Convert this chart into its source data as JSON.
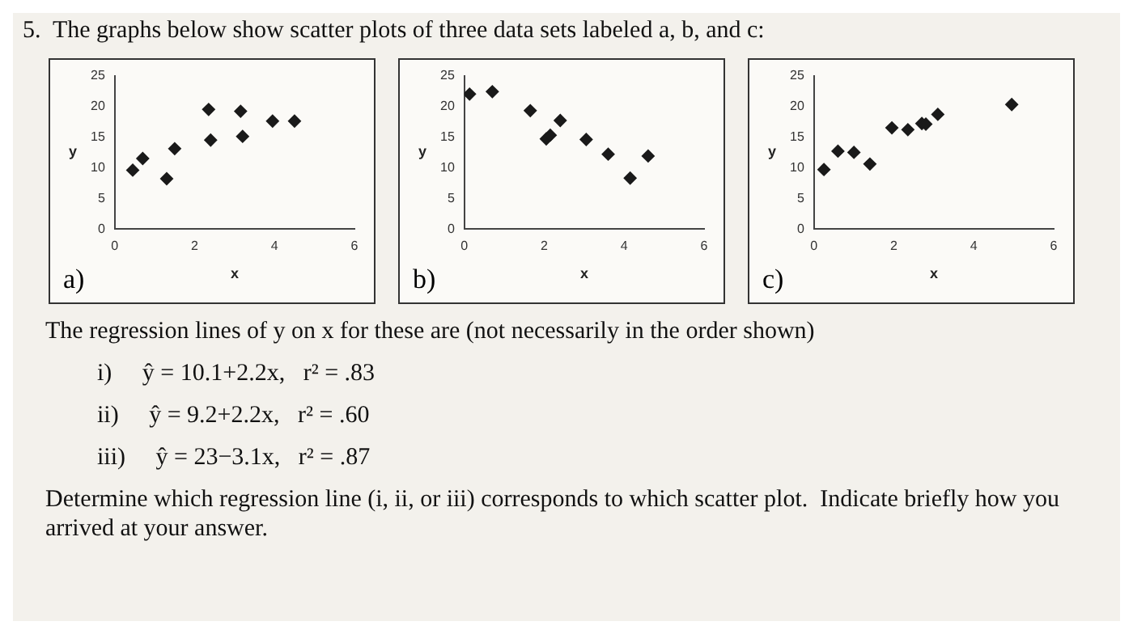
{
  "chart_data": [
    {
      "type": "other",
      "annotations": [
        "5.  The graphs below show scatter plots of three data sets labeled a, b, and c:"
      ]
    },
    {
      "type": "scatter",
      "xlabel": "x",
      "ylabel": "y",
      "annotations": [
        "a)"
      ],
      "marker": "diamond",
      "color": "#1a1a1a",
      "xlim": [
        0,
        6
      ],
      "xticks": [
        0,
        2,
        4,
        6
      ],
      "ylim": [
        0,
        25
      ],
      "yticks": [
        0,
        5,
        10,
        15,
        20,
        25
      ],
      "x": [
        0.45,
        0.7,
        1.3,
        1.5,
        2.35,
        2.4,
        3.15,
        3.2,
        3.95,
        4.5
      ],
      "values": [
        9.6,
        11.5,
        8.2,
        13.1,
        19.5,
        14.5,
        19.2,
        15.1,
        17.6,
        17.6
      ]
    },
    {
      "type": "scatter",
      "xlabel": "x",
      "ylabel": "y",
      "annotations": [
        "b)"
      ],
      "marker": "diamond",
      "color": "#1a1a1a",
      "xlim": [
        0,
        6
      ],
      "xticks": [
        0,
        2,
        4,
        6
      ],
      "ylim": [
        0,
        25
      ],
      "yticks": [
        0,
        5,
        10,
        15,
        20,
        25
      ],
      "x": [
        0.13,
        0.7,
        1.65,
        2.05,
        2.15,
        2.4,
        3.05,
        3.6,
        4.15,
        4.6
      ],
      "values": [
        22,
        22.4,
        19.3,
        14.7,
        15.3,
        17.7,
        14.6,
        12.2,
        8.3,
        11.9
      ]
    },
    {
      "type": "scatter",
      "xlabel": "x",
      "ylabel": "y",
      "annotations": [
        "c)"
      ],
      "marker": "diamond",
      "color": "#1a1a1a",
      "xlim": [
        0,
        6
      ],
      "xticks": [
        0,
        2,
        4,
        6
      ],
      "ylim": [
        0,
        25
      ],
      "yticks": [
        0,
        5,
        10,
        15,
        20,
        25
      ],
      "x": [
        0.25,
        0.6,
        1.0,
        1.4,
        1.95,
        2.35,
        2.7,
        2.8,
        3.1,
        4.95
      ],
      "values": [
        9.7,
        12.7,
        12.5,
        10.6,
        16.5,
        16.2,
        17.2,
        17.1,
        18.7,
        20.3
      ]
    },
    {
      "type": "other",
      "annotations": [
        "The regression lines of y on x for these are (not necessarily in the order shown)",
        "i)     ŷ = 10.1+2.2x,   r² = .83",
        "ii)     ŷ = 9.2+2.2x,   r² = .60",
        "iii)     ŷ = 23−3.1x,   r² = .87",
        "Determine which regression line (i, ii, or iii) corresponds to which scatter plot.  Indicate briefly how you arrived at your answer."
      ]
    }
  ]
}
